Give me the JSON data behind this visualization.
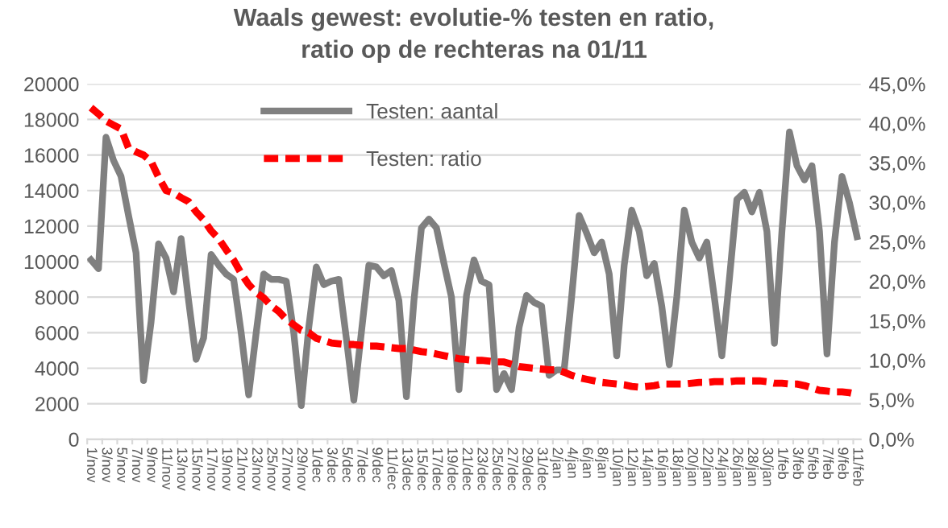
{
  "chart_data": {
    "type": "line",
    "title": "Waals gewest: evolutie-% testen en ratio,\nratio op de rechteras na 01/11",
    "categories": [
      "1/nov",
      null,
      "3/nov",
      null,
      "5/nov",
      null,
      "7/nov",
      null,
      "9/nov",
      null,
      "11/nov",
      null,
      "13/nov",
      null,
      "15/nov",
      null,
      "17/nov",
      null,
      "19/nov",
      null,
      "21/nov",
      null,
      "23/nov",
      null,
      "25/nov",
      null,
      "27/nov",
      null,
      "29/nov",
      null,
      "1/dec",
      null,
      "3/dec",
      null,
      "5/dec",
      null,
      "7/dec",
      null,
      "9/dec",
      null,
      "11/dec",
      null,
      "13/dec",
      null,
      "15/dec",
      null,
      "17/dec",
      null,
      "19/dec",
      null,
      "21/dec",
      null,
      "23/dec",
      null,
      "25/dec",
      null,
      "27/dec",
      null,
      "29/dec",
      null,
      "31/dec",
      null,
      "2/jan",
      null,
      "4/jan",
      null,
      "6/jan",
      null,
      "8/jan",
      null,
      "10/jan",
      null,
      "12/jan",
      null,
      "14/jan",
      null,
      "16/jan",
      null,
      "18/jan",
      null,
      "20/jan",
      null,
      "22/jan",
      null,
      "24/jan",
      null,
      "26/jan",
      null,
      "28/jan",
      null,
      "30/jan",
      null,
      "1/feb",
      null,
      "3/feb",
      null,
      "5/feb",
      null,
      "7/feb",
      null,
      "9/feb",
      null,
      "11/feb"
    ],
    "series": [
      {
        "name": "Testen: aantal",
        "color": "#808080",
        "line_style": "solid",
        "values": [
          10100,
          9600,
          17000,
          15700,
          14800,
          12600,
          10500,
          3300,
          6600,
          11000,
          10200,
          8300,
          11300,
          7800,
          4500,
          5700,
          10400,
          9800,
          9300,
          9000,
          6000,
          2500,
          6000,
          9300,
          9000,
          9000,
          8900,
          6000,
          1900,
          6300,
          9700,
          8700,
          8900,
          9000,
          5700,
          2200,
          6000,
          9800,
          9700,
          9200,
          9500,
          7800,
          2400,
          7800,
          11900,
          12400,
          11900,
          9900,
          8000,
          2800,
          8100,
          10100,
          8900,
          8700,
          2800,
          3700,
          2800,
          6300,
          8100,
          7700,
          7500,
          3600,
          3900,
          3900,
          8000,
          12600,
          11600,
          10500,
          11100,
          9300,
          4700,
          9800,
          12900,
          11700,
          9200,
          9900,
          7500,
          4200,
          8000,
          12900,
          11100,
          10200,
          11100,
          8000,
          4700,
          9000,
          13500,
          13900,
          12800,
          13900,
          11700,
          5400,
          11700,
          17300,
          15400,
          14600,
          15400,
          11700,
          4800,
          11100,
          14800,
          13300,
          11400
        ]
      },
      {
        "name": "Testen: ratio",
        "color": "#ff0000",
        "line_style": "dashed",
        "axis": "y2",
        "values": [
          42.0,
          41.2,
          40.3,
          39.8,
          39.3,
          36.9,
          36.4,
          36.0,
          35.2,
          33.2,
          31.5,
          31.2,
          30.6,
          30.1,
          28.8,
          27.8,
          26.4,
          25.4,
          24.0,
          22.7,
          21.0,
          19.6,
          18.6,
          17.9,
          16.9,
          16.2,
          15.2,
          14.5,
          13.8,
          13.5,
          12.8,
          12.5,
          12.2,
          12.1,
          12.0,
          12.0,
          11.9,
          11.8,
          11.8,
          11.7,
          11.6,
          11.5,
          11.5,
          11.3,
          11.1,
          11.0,
          10.8,
          10.6,
          10.4,
          10.2,
          10.1,
          10.0,
          10.0,
          9.9,
          9.8,
          9.8,
          9.5,
          9.2,
          9.1,
          9.0,
          8.9,
          8.8,
          8.8,
          8.5,
          8.1,
          7.8,
          7.6,
          7.4,
          7.2,
          7.1,
          7.0,
          6.9,
          6.7,
          6.6,
          6.7,
          6.8,
          7.0,
          7.0,
          7.0,
          7.0,
          7.1,
          7.2,
          7.2,
          7.3,
          7.3,
          7.3,
          7.4,
          7.4,
          7.4,
          7.4,
          7.3,
          7.1,
          7.1,
          7.0,
          7.0,
          6.8,
          6.5,
          6.2,
          6.1,
          6.0,
          6.0,
          5.9,
          5.7
        ]
      }
    ],
    "ylim": [
      0,
      20000
    ],
    "yticks": [
      0,
      2000,
      4000,
      6000,
      8000,
      10000,
      12000,
      14000,
      16000,
      18000,
      20000
    ],
    "y2lim": [
      0,
      45
    ],
    "y2ticks": [
      {
        "value": 0,
        "label": "0,0%"
      },
      {
        "value": 5,
        "label": "5,0%"
      },
      {
        "value": 10,
        "label": "10,0%"
      },
      {
        "value": 15,
        "label": "15,0%"
      },
      {
        "value": 20,
        "label": "20,0%"
      },
      {
        "value": 25,
        "label": "25,0%"
      },
      {
        "value": 30,
        "label": "30,0%"
      },
      {
        "value": 35,
        "label": "35,0%"
      },
      {
        "value": 40,
        "label": "40,0%"
      },
      {
        "value": 45,
        "label": "45,0%"
      }
    ],
    "grid": "y",
    "legend": "top",
    "marker": "none"
  }
}
